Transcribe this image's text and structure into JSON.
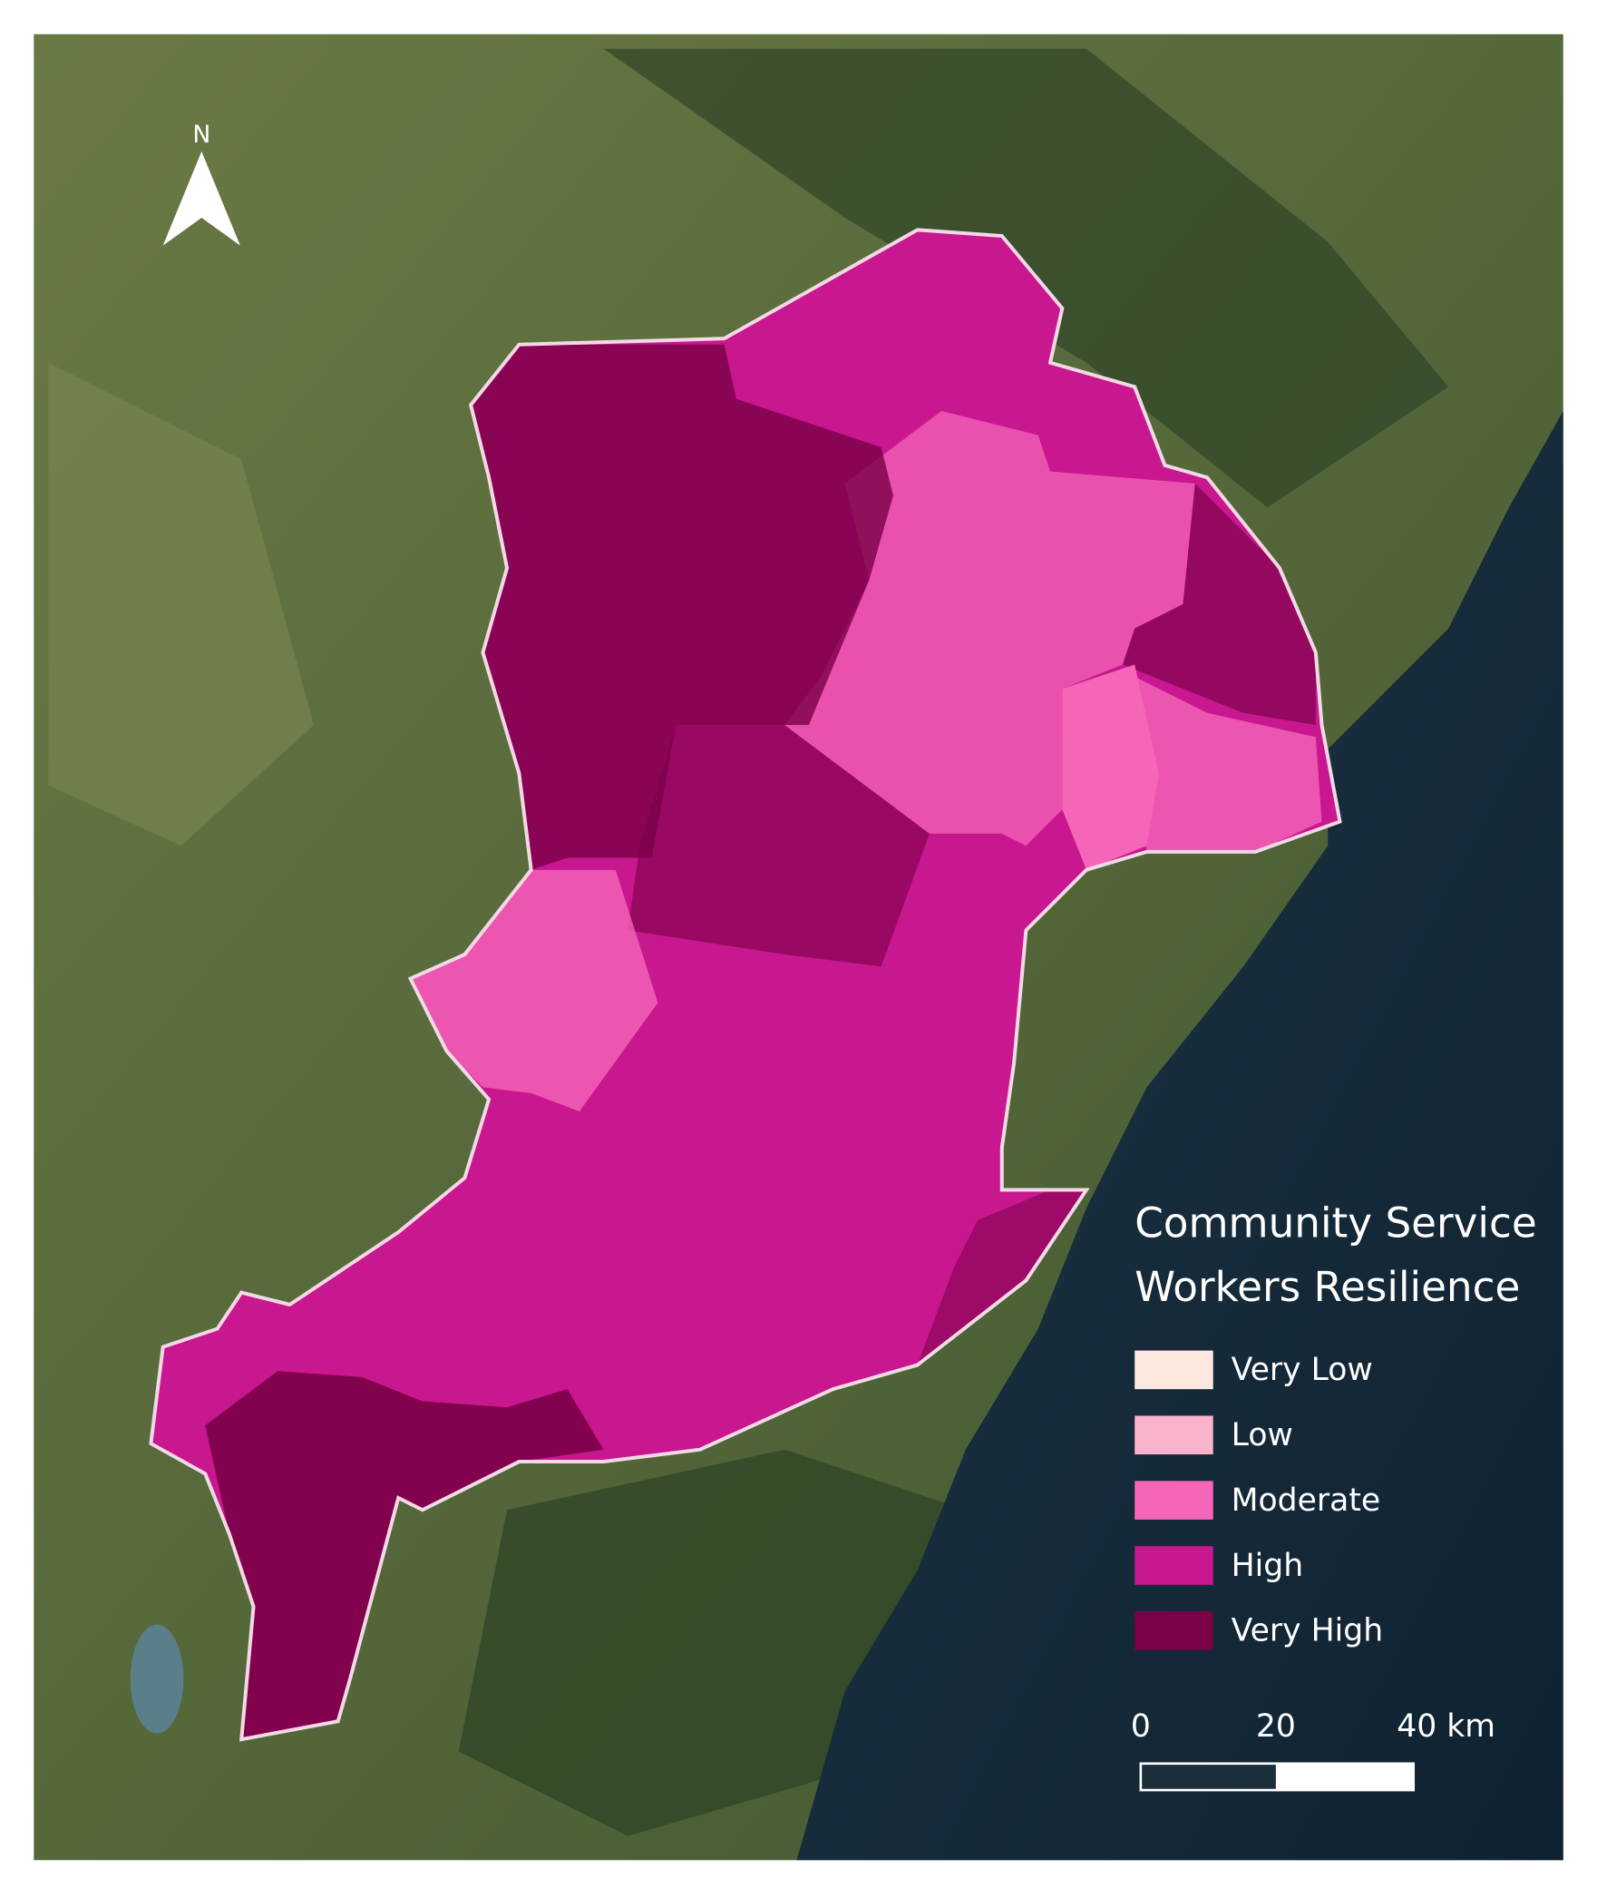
{
  "map": {
    "north_label": "N",
    "legend": {
      "title_lines": [
        "Community Service",
        "Workers Resilience"
      ],
      "items": [
        {
          "label": "Very Low",
          "color": "#fde8e0"
        },
        {
          "label": "Low",
          "color": "#f9b4cc"
        },
        {
          "label": "Moderate",
          "color": "#f565b8"
        },
        {
          "label": "High",
          "color": "#c8178f"
        },
        {
          "label": "Very High",
          "color": "#7a0047"
        }
      ]
    },
    "scale_bar": {
      "labels": [
        "0",
        "20",
        "40 km"
      ]
    }
  }
}
